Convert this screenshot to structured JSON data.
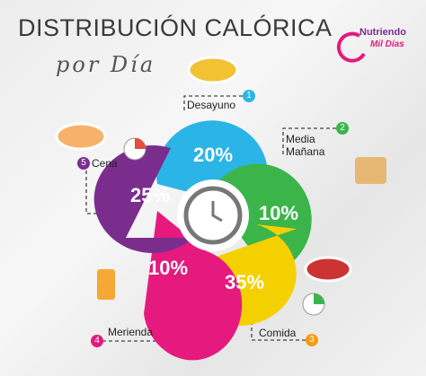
{
  "title": "DISTRIBUCIÓN CALÓRICA",
  "subtitle": "por Día",
  "logo": {
    "line1": "Nutriendo",
    "line2": "Mil Días"
  },
  "meals": [
    {
      "number": "1",
      "name": "Desayuno",
      "percent": "20%"
    },
    {
      "number": "2",
      "name": "Media Mañana",
      "percent": "10%"
    },
    {
      "number": "3",
      "name": "Comida",
      "percent": "35%"
    },
    {
      "number": "4",
      "name": "Merienda",
      "percent": "10%"
    },
    {
      "number": "5",
      "name": "Cena",
      "percent": "25%"
    }
  ]
}
